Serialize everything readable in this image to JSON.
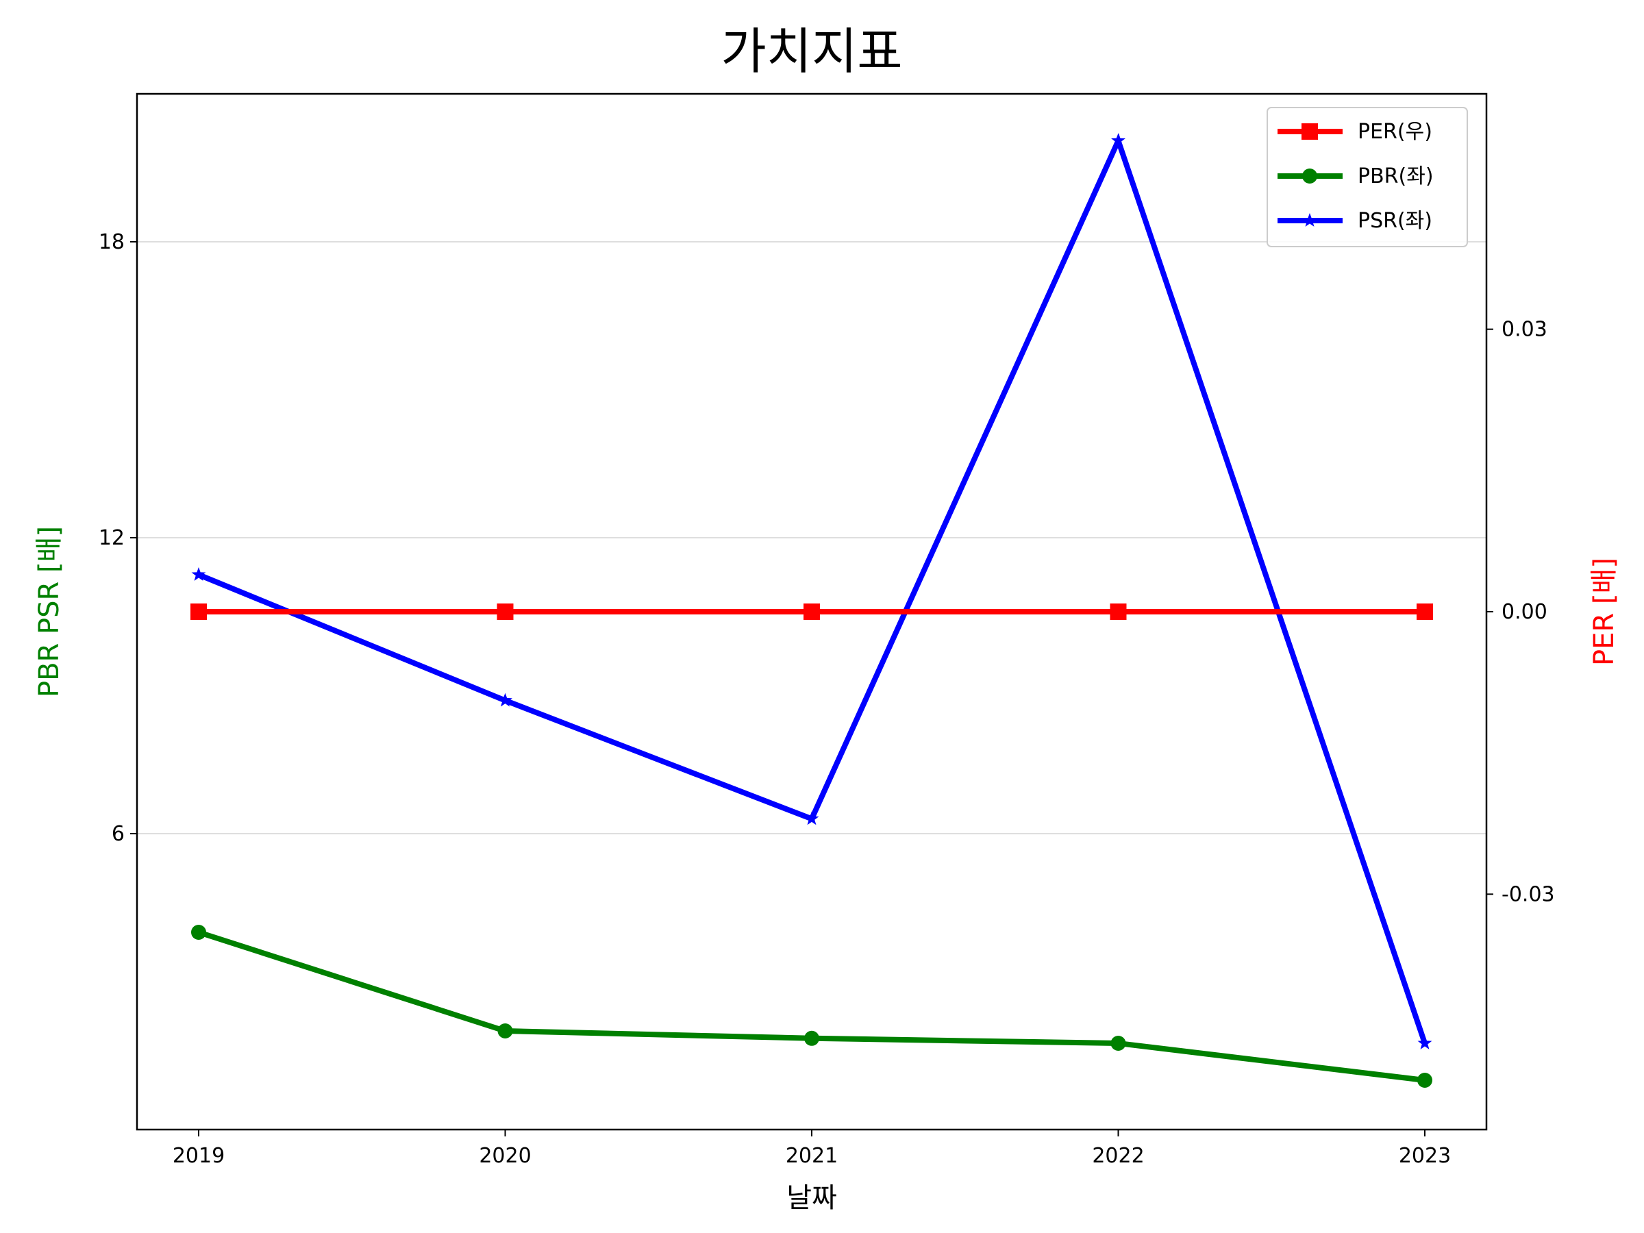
{
  "chart_data": {
    "type": "line",
    "title": "가치지표",
    "xlabel": "날짜",
    "ylabel_left": "PBR PSR [배]",
    "ylabel_right": "PER [배]",
    "categories": [
      "2019",
      "2020",
      "2021",
      "2022",
      "2023"
    ],
    "left_axis": {
      "ylim": [
        0,
        21
      ],
      "ticks": [
        6,
        12,
        18
      ],
      "tick_labels": [
        "6",
        "12",
        "18"
      ],
      "grid": true
    },
    "right_axis": {
      "ylim": [
        -0.055,
        0.055
      ],
      "ticks": [
        -0.03,
        0.0,
        0.03
      ],
      "tick_labels": [
        "-0.03",
        "0.00",
        "0.03"
      ]
    },
    "series": [
      {
        "name": "PER(우)",
        "axis": "right",
        "marker": "square",
        "color": "#ff0000",
        "values": [
          0,
          0,
          0,
          0,
          0
        ]
      },
      {
        "name": "PBR(좌)",
        "axis": "left",
        "marker": "circle",
        "color": "#008000",
        "values": [
          4.0,
          2.0,
          1.85,
          1.75,
          1.0
        ]
      },
      {
        "name": "PSR(좌)",
        "axis": "left",
        "marker": "star",
        "color": "#0000ff",
        "values": [
          11.25,
          8.7,
          6.3,
          20.05,
          1.75
        ]
      }
    ],
    "legend_position": "top-right",
    "colors": {
      "left_label": "#008000",
      "right_label": "#ff0000",
      "grid": "#d3d3d3"
    }
  }
}
